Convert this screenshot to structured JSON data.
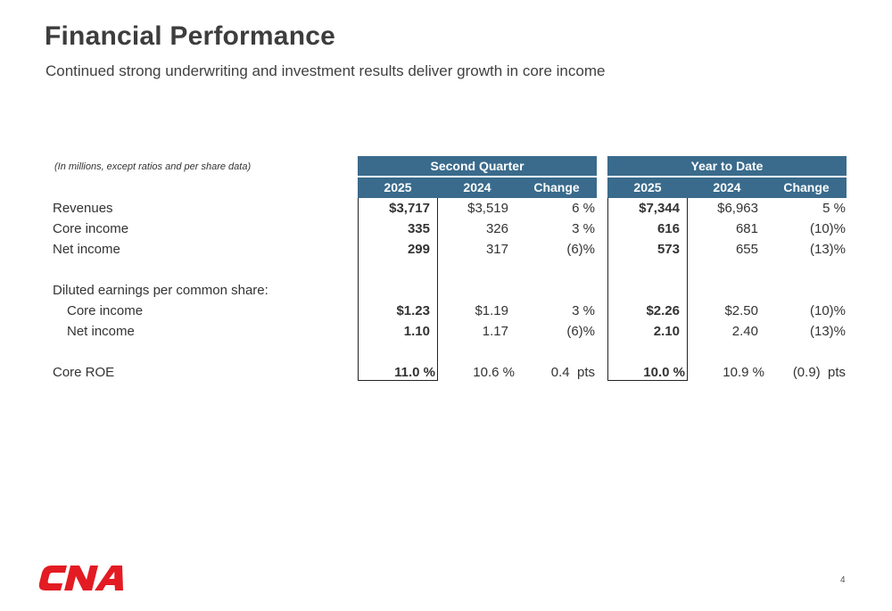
{
  "slide": {
    "title": "Financial Performance",
    "subtitle": "Continued strong underwriting and investment results deliver growth in core income",
    "page_number": "4",
    "logo_text": "CNA",
    "logo_color": "#e31b23"
  },
  "table": {
    "note": "(In millions, except ratios and per share data)",
    "header_color": "#3a6b8c",
    "groups": [
      "Second Quarter",
      "Year to Date"
    ],
    "columns": [
      "2025",
      "2024",
      "Change",
      "2025",
      "2024",
      "Change"
    ],
    "rows": [
      {
        "label": "Revenues",
        "values": [
          "$3,717",
          "$3,519",
          "6 %",
          "$7,344",
          "$6,963",
          "5 %"
        ]
      },
      {
        "label": "Core income",
        "values": [
          "335",
          "326",
          "3 %",
          "616",
          "681",
          "(10)%"
        ]
      },
      {
        "label": "Net income",
        "values": [
          "299",
          "317",
          "(6)%",
          "573",
          "655",
          "(13)%"
        ]
      },
      {
        "label": "Diluted earnings per common share:",
        "values": [
          "",
          "",
          "",
          "",
          "",
          ""
        ]
      },
      {
        "label": "Core income",
        "values": [
          "$1.23",
          "$1.19",
          "3 %",
          "$2.26",
          "$2.50",
          "(10)%"
        ]
      },
      {
        "label": "Net income",
        "values": [
          "1.10",
          "1.17",
          "(6)%",
          "2.10",
          "2.40",
          "(13)%"
        ]
      },
      {
        "label": "Core ROE",
        "values": [
          "11.0 %",
          "10.6 %",
          "0.4  pts",
          "10.0 %",
          "10.9 %",
          "(0.9)  pts"
        ]
      }
    ]
  }
}
